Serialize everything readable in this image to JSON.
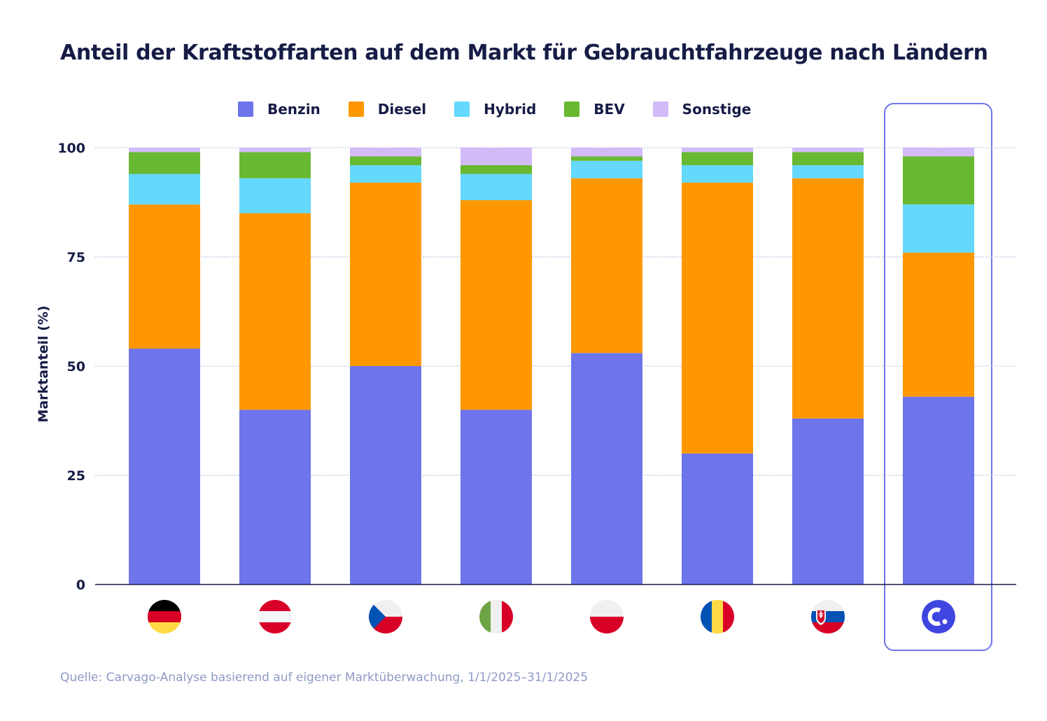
{
  "chart_data": {
    "type": "bar",
    "stacked": true,
    "title": "Anteil der Kraftstoffarten auf dem Markt für Gebrauchtfahrzeuge nach Ländern",
    "xlabel": "",
    "ylabel": "Marktanteil (%)",
    "ylim": [
      0,
      100
    ],
    "yticks": [
      "0",
      "25",
      "50",
      "75",
      "100"
    ],
    "ytick_values": [
      0,
      25,
      50,
      75,
      100
    ],
    "grid": true,
    "legend_position": "top",
    "categories": [
      "Deutschland",
      "Österreich",
      "Tschechien",
      "Italien",
      "Polen",
      "Rumänien",
      "Slowakei",
      "Carvago"
    ],
    "category_icons": [
      "flag-germany",
      "flag-austria",
      "flag-czechia",
      "flag-italy",
      "flag-poland",
      "flag-romania",
      "flag-slovakia",
      "carvago-logo"
    ],
    "highlighted_category": "Carvago",
    "series": [
      {
        "name": "Benzin",
        "color": "#6e74ea",
        "values": [
          54,
          40,
          50,
          40,
          53,
          30,
          38,
          43
        ]
      },
      {
        "name": "Diesel",
        "color": "#ff9800",
        "values": [
          33,
          45,
          42,
          48,
          40,
          62,
          55,
          33
        ]
      },
      {
        "name": "Hybrid",
        "color": "#64d8fd",
        "values": [
          7,
          8,
          4,
          6,
          4,
          4,
          3,
          11
        ]
      },
      {
        "name": "BEV",
        "color": "#69b831",
        "values": [
          5,
          6,
          2,
          2,
          1,
          3,
          3,
          11
        ]
      },
      {
        "name": "Sonstige",
        "color": "#d3bbf8",
        "values": [
          1,
          1,
          2,
          4,
          2,
          1,
          1,
          2
        ]
      }
    ]
  },
  "source": "Quelle: Carvago-Analyse basierend auf eigener Marktüberwachung, 1/1/2025–31/1/2025"
}
